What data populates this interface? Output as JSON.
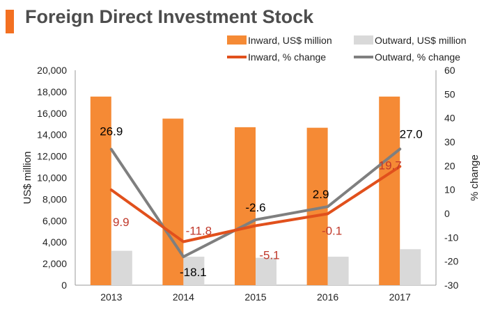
{
  "header": {
    "title": "Foreign Direct Investment Stock"
  },
  "colors": {
    "accent": "#f37021",
    "inward_bar": "#f58a35",
    "outward_bar": "#d9d9d9",
    "inward_line": "#e1501c",
    "outward_line": "#7f7f7f",
    "inward_label": "#c0392b",
    "text": "#222222",
    "title": "#4d4d4d"
  },
  "chart_data": {
    "type": "bar",
    "title": "Foreign Direct Investment Stock",
    "categories": [
      "2013",
      "2014",
      "2015",
      "2016",
      "2017"
    ],
    "ylabel": "US$ million",
    "y2label": "% change",
    "ylim": [
      0,
      20000
    ],
    "y2lim": [
      -30,
      60
    ],
    "yticks": [
      "0",
      "2,000",
      "4,000",
      "6,000",
      "8,000",
      "10,000",
      "12,000",
      "14,000",
      "16,000",
      "18,000",
      "20,000"
    ],
    "y2ticks": [
      "-30",
      "-20",
      "-10",
      "0",
      "10",
      "20",
      "30",
      "40",
      "50",
      "60"
    ],
    "bar_series": [
      {
        "name": "Inward, US$ million",
        "values": [
          17550,
          15500,
          14700,
          14650,
          17550
        ]
      },
      {
        "name": "Outward, US$ million",
        "values": [
          3200,
          2650,
          2550,
          2650,
          3350
        ]
      }
    ],
    "line_series": [
      {
        "name": "Inward, % change",
        "values": [
          9.9,
          -11.8,
          -5.1,
          -0.1,
          19.7
        ],
        "labels": [
          "9.9",
          "-11.8",
          "-5.1",
          "-0.1",
          "19.7"
        ]
      },
      {
        "name": "Outward, % change",
        "values": [
          26.9,
          -18.1,
          -2.6,
          2.9,
          27.0
        ],
        "labels": [
          "26.9",
          "-18.1",
          "-2.6",
          "2.9",
          "27.0"
        ]
      }
    ],
    "legend": [
      "Inward, US$ million",
      "Outward, US$ million",
      "Inward, % change",
      "Outward, % change"
    ],
    "legend_position": "top-right",
    "grid": false
  }
}
